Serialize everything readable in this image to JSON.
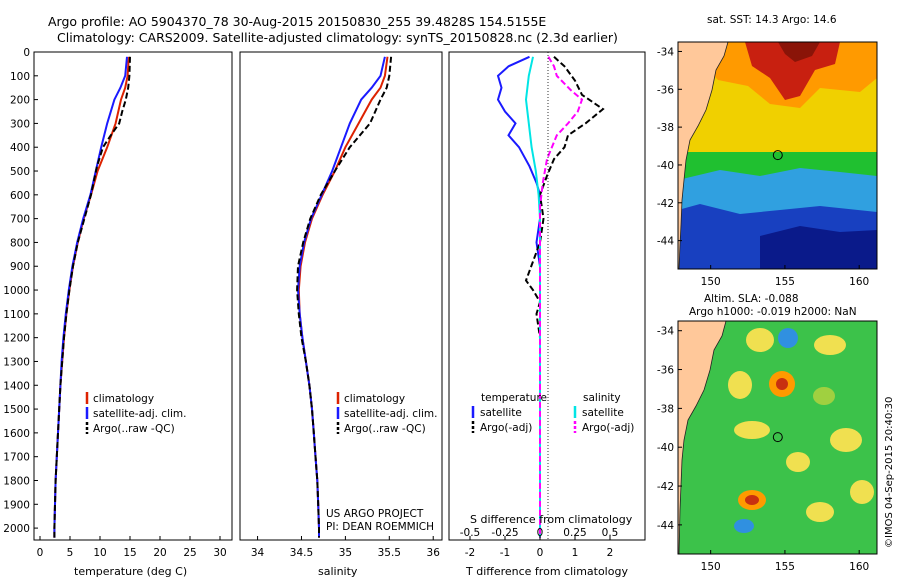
{
  "header": {
    "title_line1": "Argo profile: AO 5904370_78 30-Aug-2015 20150830_255 39.4828S 154.5155E",
    "title_line2": "Climatology: CARS2009. Satellite-adjusted climatology: synTS_20150828.nc (2.3d earlier)"
  },
  "colors": {
    "climatology": "#dd2200",
    "satellite": "#1a1aff",
    "argo": "#000000",
    "sal_satellite": "#00e5e5",
    "sal_argo": "#ff00ff",
    "land": "#ffc89a"
  },
  "chart_data": [
    {
      "type": "line",
      "name": "temperature-profile",
      "xlabel": "temperature (deg C)",
      "ylabel": "",
      "xlim": [
        -1,
        32
      ],
      "ylim": [
        2050,
        0
      ],
      "xticks": [
        0,
        5,
        10,
        15,
        20,
        25,
        30
      ],
      "yticks": [
        0,
        100,
        200,
        300,
        400,
        500,
        600,
        700,
        800,
        900,
        1000,
        1100,
        1200,
        1300,
        1400,
        1500,
        1600,
        1700,
        1800,
        1900,
        2000
      ],
      "legend": [
        "climatology",
        "satellite-adj. clim.",
        "Argo(..raw -QC)"
      ],
      "legend_position": "lower-left",
      "series": [
        {
          "name": "climatology",
          "color": "#dd2200",
          "dash": false,
          "points": [
            [
              14.8,
              20
            ],
            [
              14.6,
              100
            ],
            [
              14.2,
              150
            ],
            [
              13.5,
              200
            ],
            [
              12.6,
              300
            ],
            [
              11.2,
              400
            ],
            [
              9.6,
              500
            ],
            [
              8.5,
              600
            ],
            [
              7.3,
              700
            ],
            [
              6.3,
              800
            ],
            [
              5.5,
              900
            ],
            [
              4.9,
              1000
            ],
            [
              4.4,
              1100
            ],
            [
              4.0,
              1200
            ],
            [
              3.7,
              1300
            ],
            [
              3.4,
              1400
            ],
            [
              3.2,
              1500
            ],
            [
              3.0,
              1600
            ],
            [
              2.8,
              1700
            ],
            [
              2.6,
              1800
            ],
            [
              2.5,
              1900
            ],
            [
              2.4,
              2000
            ],
            [
              2.4,
              2040
            ]
          ]
        },
        {
          "name": "satellite-adj. clim.",
          "color": "#1a1aff",
          "dash": false,
          "points": [
            [
              14.5,
              20
            ],
            [
              14.2,
              100
            ],
            [
              13.4,
              150
            ],
            [
              12.4,
              200
            ],
            [
              11.2,
              300
            ],
            [
              10.2,
              400
            ],
            [
              9.3,
              500
            ],
            [
              8.4,
              600
            ],
            [
              7.2,
              700
            ],
            [
              6.2,
              800
            ],
            [
              5.4,
              900
            ],
            [
              4.8,
              1000
            ],
            [
              4.3,
              1100
            ],
            [
              3.9,
              1200
            ],
            [
              3.6,
              1300
            ],
            [
              3.4,
              1400
            ],
            [
              3.2,
              1500
            ],
            [
              3.0,
              1600
            ],
            [
              2.8,
              1700
            ],
            [
              2.6,
              1800
            ],
            [
              2.5,
              1900
            ],
            [
              2.4,
              2000
            ],
            [
              2.4,
              2040
            ]
          ]
        },
        {
          "name": "Argo(..raw -QC)",
          "color": "#000000",
          "dash": true,
          "points": [
            [
              15.0,
              20
            ],
            [
              14.9,
              100
            ],
            [
              14.7,
              150
            ],
            [
              14.3,
              200
            ],
            [
              13.7,
              250
            ],
            [
              13.2,
              300
            ],
            [
              11.8,
              350
            ],
            [
              10.5,
              400
            ],
            [
              9.5,
              480
            ],
            [
              8.5,
              600
            ],
            [
              7.4,
              700
            ],
            [
              6.3,
              800
            ],
            [
              5.5,
              900
            ],
            [
              4.9,
              1000
            ],
            [
              4.4,
              1100
            ],
            [
              4.0,
              1200
            ],
            [
              3.7,
              1300
            ],
            [
              3.4,
              1400
            ],
            [
              3.2,
              1500
            ],
            [
              3.0,
              1600
            ],
            [
              2.8,
              1700
            ],
            [
              2.6,
              1800
            ],
            [
              2.5,
              1900
            ],
            [
              2.4,
              2000
            ],
            [
              2.4,
              2040
            ]
          ]
        }
      ]
    },
    {
      "type": "line",
      "name": "salinity-profile",
      "xlabel": "salinity",
      "xlim": [
        33.8,
        36.1
      ],
      "ylim": [
        2050,
        0
      ],
      "xticks": [
        34,
        34.5,
        35,
        35.5,
        36
      ],
      "xticklabels": [
        "34",
        "34.5",
        "35",
        "35.5",
        "36"
      ],
      "legend": [
        "climatology",
        "satellite-adj. clim.",
        "Argo(..raw -QC)"
      ],
      "legend_position": "lower-right",
      "annotation": [
        "US ARGO PROJECT",
        "PI: DEAN ROEMMICH"
      ],
      "series": [
        {
          "name": "climatology",
          "color": "#dd2200",
          "dash": false,
          "points": [
            [
              35.48,
              20
            ],
            [
              35.45,
              100
            ],
            [
              35.4,
              150
            ],
            [
              35.3,
              200
            ],
            [
              35.15,
              300
            ],
            [
              35.0,
              400
            ],
            [
              34.88,
              500
            ],
            [
              34.74,
              600
            ],
            [
              34.62,
              700
            ],
            [
              34.54,
              800
            ],
            [
              34.49,
              900
            ],
            [
              34.47,
              1000
            ],
            [
              34.48,
              1100
            ],
            [
              34.51,
              1200
            ],
            [
              34.55,
              1300
            ],
            [
              34.59,
              1400
            ],
            [
              34.62,
              1500
            ],
            [
              34.64,
              1600
            ],
            [
              34.66,
              1700
            ],
            [
              34.68,
              1800
            ],
            [
              34.69,
              1900
            ],
            [
              34.7,
              2000
            ],
            [
              34.7,
              2040
            ]
          ]
        },
        {
          "name": "satellite-adj. clim.",
          "color": "#1a1aff",
          "dash": false,
          "points": [
            [
              35.45,
              20
            ],
            [
              35.4,
              100
            ],
            [
              35.3,
              150
            ],
            [
              35.18,
              200
            ],
            [
              35.05,
              300
            ],
            [
              34.95,
              400
            ],
            [
              34.85,
              500
            ],
            [
              34.73,
              600
            ],
            [
              34.61,
              700
            ],
            [
              34.53,
              800
            ],
            [
              34.48,
              900
            ],
            [
              34.46,
              1000
            ],
            [
              34.48,
              1100
            ],
            [
              34.51,
              1200
            ],
            [
              34.55,
              1300
            ],
            [
              34.59,
              1400
            ],
            [
              34.62,
              1500
            ],
            [
              34.64,
              1600
            ],
            [
              34.66,
              1700
            ],
            [
              34.68,
              1800
            ],
            [
              34.69,
              1900
            ],
            [
              34.7,
              2000
            ],
            [
              34.7,
              2040
            ]
          ]
        },
        {
          "name": "Argo(..raw -QC)",
          "color": "#000000",
          "dash": true,
          "points": [
            [
              35.52,
              20
            ],
            [
              35.5,
              100
            ],
            [
              35.47,
              150
            ],
            [
              35.4,
              200
            ],
            [
              35.28,
              300
            ],
            [
              35.05,
              400
            ],
            [
              34.88,
              500
            ],
            [
              34.72,
              600
            ],
            [
              34.6,
              700
            ],
            [
              34.52,
              800
            ],
            [
              34.46,
              900
            ],
            [
              34.45,
              1000
            ],
            [
              34.47,
              1100
            ],
            [
              34.5,
              1200
            ],
            [
              34.55,
              1300
            ],
            [
              34.59,
              1400
            ],
            [
              34.62,
              1500
            ],
            [
              34.64,
              1600
            ],
            [
              34.66,
              1700
            ],
            [
              34.68,
              1800
            ],
            [
              34.69,
              1900
            ],
            [
              34.7,
              2000
            ],
            [
              34.7,
              2040
            ]
          ]
        }
      ]
    },
    {
      "type": "line",
      "name": "difference-profile",
      "xlabel": "T difference from climatology",
      "x2label": "S difference from climatology",
      "xlim": [
        -2.6,
        3.0
      ],
      "x2lim": [
        -0.65,
        0.75
      ],
      "ylim": [
        2050,
        0
      ],
      "xticks": [
        -2,
        -1,
        0,
        1,
        2
      ],
      "x2ticks": [
        -0.5,
        -0.25,
        0,
        0.25,
        0.5
      ],
      "x2ticklabels": [
        "-0.5",
        "-0.25",
        "0",
        "0.25",
        "0.5"
      ],
      "legend_titles": [
        "temperature",
        "salinity"
      ],
      "legend": [
        "satellite",
        "Argo(-adj)",
        "satellite",
        "Argo(-adj)"
      ],
      "series": [
        {
          "name": "temperature satellite",
          "axis": "T",
          "color": "#1a1aff",
          "dash": false,
          "points": [
            [
              -0.3,
              20
            ],
            [
              -0.9,
              60
            ],
            [
              -1.2,
              100
            ],
            [
              -1.1,
              150
            ],
            [
              -1.2,
              200
            ],
            [
              -1.0,
              250
            ],
            [
              -0.7,
              300
            ],
            [
              -0.9,
              350
            ],
            [
              -0.6,
              400
            ],
            [
              -0.3,
              480
            ],
            [
              -0.1,
              550
            ],
            [
              0.0,
              600
            ],
            [
              0.0,
              700
            ],
            [
              -0.1,
              800
            ],
            [
              0.0,
              900
            ],
            [
              0.0,
              1000
            ],
            [
              0.0,
              1200
            ],
            [
              0.0,
              1400
            ],
            [
              0.0,
              1600
            ],
            [
              0.0,
              1800
            ],
            [
              0.0,
              2040
            ]
          ]
        },
        {
          "name": "temperature Argo(-adj)",
          "axis": "T",
          "color": "#000000",
          "dash": true,
          "points": [
            [
              0.4,
              20
            ],
            [
              0.7,
              60
            ],
            [
              1.0,
              120
            ],
            [
              1.2,
              180
            ],
            [
              1.8,
              240
            ],
            [
              1.3,
              300
            ],
            [
              0.8,
              350
            ],
            [
              0.7,
              400
            ],
            [
              0.4,
              450
            ],
            [
              0.2,
              520
            ],
            [
              0.0,
              600
            ],
            [
              0.1,
              700
            ],
            [
              0.0,
              800
            ],
            [
              -0.2,
              880
            ],
            [
              -0.4,
              960
            ],
            [
              -0.2,
              1000
            ],
            [
              0.0,
              1050
            ],
            [
              -0.1,
              1100
            ],
            [
              0.0,
              1200
            ],
            [
              0.0,
              1400
            ],
            [
              0.0,
              1600
            ],
            [
              0.0,
              1800
            ],
            [
              0.0,
              2040
            ]
          ]
        },
        {
          "name": "salinity satellite",
          "axis": "S",
          "color": "#00e5e5",
          "dash": false,
          "points": [
            [
              -0.05,
              20
            ],
            [
              -0.08,
              100
            ],
            [
              -0.1,
              200
            ],
            [
              -0.08,
              300
            ],
            [
              -0.06,
              400
            ],
            [
              -0.03,
              500
            ],
            [
              -0.01,
              600
            ],
            [
              0.0,
              700
            ],
            [
              0.0,
              800
            ],
            [
              0.0,
              1000
            ],
            [
              0.0,
              1200
            ],
            [
              0.0,
              1400
            ],
            [
              0.0,
              1600
            ],
            [
              0.0,
              1800
            ],
            [
              0.0,
              2040
            ]
          ]
        },
        {
          "name": "salinity Argo(-adj)",
          "axis": "S",
          "color": "#ff00ff",
          "dash": true,
          "points": [
            [
              0.06,
              20
            ],
            [
              0.1,
              60
            ],
            [
              0.12,
              100
            ],
            [
              0.22,
              160
            ],
            [
              0.3,
              200
            ],
            [
              0.27,
              250
            ],
            [
              0.2,
              300
            ],
            [
              0.12,
              350
            ],
            [
              0.05,
              450
            ],
            [
              0.02,
              550
            ],
            [
              0.0,
              650
            ],
            [
              0.0,
              800
            ],
            [
              0.0,
              1000
            ],
            [
              0.0,
              1200
            ],
            [
              0.0,
              1400
            ],
            [
              0.0,
              1600
            ],
            [
              0.0,
              1800
            ],
            [
              0.0,
              2040
            ]
          ]
        }
      ]
    },
    {
      "type": "heatmap",
      "name": "sst-map",
      "title": "sat. SST: 14.3 Argo: 14.6",
      "xlim": [
        147.8,
        161.2
      ],
      "ylim": [
        -45.5,
        -33.5
      ],
      "xticks": [
        150,
        155,
        160
      ],
      "yticks": [
        -34,
        -36,
        -38,
        -40,
        -42,
        -44
      ],
      "marker": {
        "lon": 154.52,
        "lat": -39.48
      }
    },
    {
      "type": "heatmap",
      "name": "sla-map",
      "title": "Altim. SLA: -0.088",
      "subtitle": "Argo h1000: -0.019 h2000: NaN",
      "xlim": [
        147.8,
        161.2
      ],
      "ylim": [
        -45.5,
        -33.5
      ],
      "xticks": [
        150,
        155,
        160
      ],
      "yticks": [
        -34,
        -36,
        -38,
        -40,
        -42,
        -44
      ],
      "marker": {
        "lon": 154.52,
        "lat": -39.48
      }
    }
  ],
  "footer": {
    "watermark": "©IMOS 04-Sep-2015 20:40:30"
  }
}
